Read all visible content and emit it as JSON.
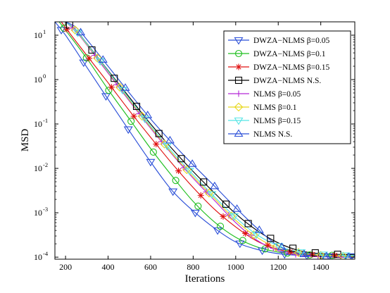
{
  "chart_data": {
    "type": "line",
    "title": "",
    "xlabel": "Iterations",
    "ylabel": "MSD",
    "xlim": [
      150,
      1560
    ],
    "ylim": [
      9e-05,
      20
    ],
    "y_scale": "log",
    "grid": false,
    "legend_position": "top-right",
    "x_ticks": [
      200,
      400,
      600,
      800,
      1000,
      1200,
      1400
    ],
    "x_tick_labels": [
      "200",
      "400",
      "600",
      "800",
      "1000",
      "1200",
      "1400"
    ],
    "y_ticks": [
      0.0001,
      0.001,
      0.01,
      0.1,
      1,
      10
    ],
    "y_tick_labels": [
      {
        "base": "10",
        "exp": "-4"
      },
      {
        "base": "10",
        "exp": "-3"
      },
      {
        "base": "10",
        "exp": "-2"
      },
      {
        "base": "10",
        "exp": "-1"
      },
      {
        "base": "10",
        "exp": "0"
      },
      {
        "base": "10",
        "exp": "1"
      }
    ],
    "series": [
      {
        "name": "DWZA−NLMS β=0.05",
        "color": "#2b4fd8",
        "marker": "triangle-down",
        "x": [
          150,
          200,
          300,
          400,
          500,
          600,
          700,
          800,
          900,
          1000,
          1100,
          1200,
          1300,
          1400,
          1500,
          1560
        ],
        "y": [
          20,
          10,
          1.9,
          0.36,
          0.07,
          0.014,
          0.0032,
          0.0011,
          0.00045,
          0.00022,
          0.00015,
          0.00012,
          0.00011,
          0.000105,
          0.000105,
          0.000105
        ]
      },
      {
        "name": "DWZA−NLMS β=0.1",
        "color": "#1fbf1f",
        "marker": "circle",
        "x": [
          170,
          200,
          300,
          400,
          500,
          600,
          700,
          800,
          900,
          1000,
          1100,
          1200,
          1300,
          1400,
          1500,
          1560
        ],
        "y": [
          20,
          13,
          3.0,
          0.6,
          0.13,
          0.028,
          0.0068,
          0.0018,
          0.00062,
          0.00028,
          0.00017,
          0.00013,
          0.000115,
          0.00011,
          0.00011,
          0.00011
        ]
      },
      {
        "name": "DWZA−NLMS β=0.15",
        "color": "#e01010",
        "marker": "asterisk",
        "x": [
          180,
          220,
          300,
          400,
          500,
          600,
          700,
          800,
          900,
          1000,
          1100,
          1200,
          1300,
          1400,
          1500,
          1560
        ],
        "y": [
          20,
          11,
          3.5,
          0.85,
          0.2,
          0.05,
          0.013,
          0.0037,
          0.0012,
          0.00048,
          0.00023,
          0.00015,
          0.00012,
          0.000112,
          0.00011,
          0.00011
        ]
      },
      {
        "name": "DWZA−NLMS N.S.",
        "color": "#000000",
        "marker": "square",
        "x": [
          200,
          250,
          300,
          400,
          500,
          600,
          700,
          800,
          900,
          1000,
          1100,
          1200,
          1300,
          1400,
          1500,
          1560
        ],
        "y": [
          20,
          13,
          6.5,
          1.6,
          0.4,
          0.1,
          0.028,
          0.0085,
          0.0028,
          0.00095,
          0.0004,
          0.00021,
          0.00014,
          0.00012,
          0.000115,
          0.000115
        ]
      },
      {
        "name": "NLMS β=0.05",
        "color": "#b526d6",
        "marker": "plus",
        "x": [
          200,
          250,
          300,
          400,
          500,
          600,
          700,
          800,
          900,
          1000,
          1100,
          1200,
          1300,
          1400,
          1500,
          1560
        ],
        "y": [
          20,
          12,
          6,
          1.4,
          0.33,
          0.08,
          0.021,
          0.006,
          0.0019,
          0.0006,
          0.00024,
          0.00014,
          0.00011,
          0.000102,
          0.0001,
          0.0001
        ]
      },
      {
        "name": "NLMS β=0.1",
        "color": "#e8d81a",
        "marker": "diamond",
        "x": [
          200,
          250,
          300,
          400,
          500,
          600,
          700,
          800,
          900,
          1000,
          1100,
          1200,
          1300,
          1400,
          1500,
          1560
        ],
        "y": [
          20,
          12.5,
          6.2,
          1.5,
          0.35,
          0.085,
          0.022,
          0.0065,
          0.0021,
          0.00068,
          0.00028,
          0.00016,
          0.000125,
          0.00011,
          0.000105,
          0.000105
        ]
      },
      {
        "name": "NLMS β=0.15",
        "color": "#55e5e5",
        "marker": "triangle-down",
        "x": [
          200,
          250,
          300,
          400,
          500,
          600,
          700,
          800,
          900,
          1000,
          1100,
          1200,
          1300,
          1400,
          1500,
          1560
        ],
        "y": [
          20,
          12.8,
          6.4,
          1.55,
          0.37,
          0.09,
          0.024,
          0.0072,
          0.0023,
          0.00078,
          0.00032,
          0.00018,
          0.00013,
          0.000115,
          0.00011,
          0.00011
        ]
      },
      {
        "name": "NLMS N.S.",
        "color": "#2b4fd8",
        "marker": "triangle-up",
        "x": [
          200,
          250,
          300,
          400,
          500,
          600,
          700,
          800,
          900,
          1000,
          1100,
          1200,
          1300,
          1400,
          1500,
          1560
        ],
        "y": [
          20,
          15,
          8,
          2.0,
          0.5,
          0.13,
          0.038,
          0.012,
          0.004,
          0.0013,
          0.00045,
          0.00018,
          0.00012,
          0.000105,
          0.0001,
          0.0001
        ]
      }
    ]
  }
}
